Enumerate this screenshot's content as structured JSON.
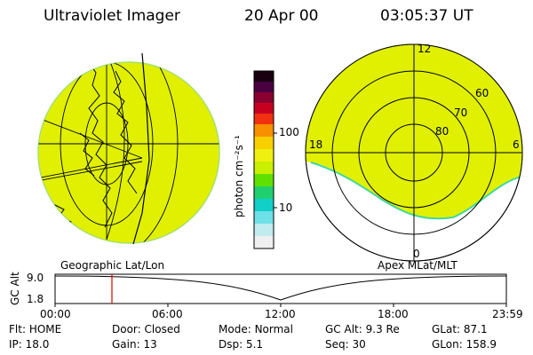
{
  "header": {
    "instrument": "Ultraviolet Imager",
    "date": "20 Apr 00",
    "time": "03:05:37 UT"
  },
  "colorbar": {
    "label": "photon cm⁻²s⁻¹",
    "ticks": [
      "100",
      "10"
    ]
  },
  "left_panel": {
    "caption": "Geographic Lat/Lon"
  },
  "right_panel": {
    "caption": "Apex MLat/MLT",
    "lat_labels": [
      "60",
      "70",
      "80"
    ],
    "mlt_labels": {
      "top": "12",
      "bottom": "0",
      "left": "18",
      "right": "6"
    }
  },
  "timeline": {
    "axis_label": "GC Alt",
    "y_ticks": [
      "9.0",
      "1.8"
    ],
    "x_ticks": [
      "00:00",
      "06:00",
      "12:00",
      "18:00",
      "23:59"
    ],
    "marker_time": "03:05"
  },
  "info": {
    "row1": {
      "flt_label": "Flt:",
      "flt_value": "HOME",
      "door_label": "Door:",
      "door_value": "Closed",
      "mode_label": "Mode:",
      "mode_value": "Normal",
      "gcalt_label": "GC Alt:",
      "gcalt_value": "9.3 Re",
      "glat_label": "GLat:",
      "glat_value": "87.1"
    },
    "row2": {
      "ip_label": "IP:",
      "ip_value": "18.0",
      "gain_label": "Gain:",
      "gain_value": "13",
      "dsp_label": "Dsp:",
      "dsp_value": "5.1",
      "seq_label": "Seq:",
      "seq_value": "30",
      "glon_label": "GLon:",
      "glon_value": "158.9"
    }
  },
  "colors": {
    "image_fill": "#e0f000",
    "marker": "#e00000"
  }
}
